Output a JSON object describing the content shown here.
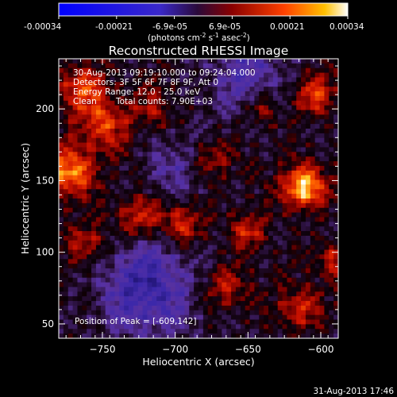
{
  "colorbar": {
    "ticks": [
      "-0.00034",
      "-0.00021",
      "-6.9e-05",
      "6.9e-05",
      "0.00021",
      "0.00034"
    ],
    "unit_prefix": "(photons cm",
    "unit_exp1": "-2",
    "unit_mid": " s",
    "unit_exp2": "-1",
    "unit_mid2": " asec",
    "unit_exp3": "-2",
    "unit_suffix": ")"
  },
  "annotations": {
    "time_range": "30-Aug-2013 09:19:10.000 to 09:24:04.000",
    "detectors": "Detectors: 3F 5F 6F 7F 8F 9F, Att 0",
    "energy": "Energy Range: 12.0 - 25.0 keV",
    "clean_label": "Clean",
    "counts": "Total counts: 7.90E+03",
    "peak": "Position of Peak = [-609,142]"
  },
  "footer_date": "31-Aug-2013 17:46",
  "chart_data": {
    "type": "heatmap",
    "title": "Reconstructed RHESSI Image",
    "xlabel": "Heliocentric X (arcsec)",
    "ylabel": "Heliocentric Y (arcsec)",
    "xlim": [
      -780,
      -588
    ],
    "ylim": [
      40,
      235
    ],
    "x_ticks": [
      -750,
      -700,
      -650,
      -600
    ],
    "y_ticks": [
      50,
      100,
      150,
      200
    ],
    "clim": [
      -0.00034,
      0.00034
    ],
    "colormap": "rhessi-purple-red-yellow-white",
    "peak": [
      -609,
      142
    ],
    "sources": [
      {
        "x": -612,
        "y": 145,
        "amp": 1.0,
        "sigma": 10
      },
      {
        "x": -773,
        "y": 155,
        "amp": 0.8,
        "sigma": 12
      },
      {
        "x": -695,
        "y": 120,
        "amp": 0.55,
        "sigma": 10
      },
      {
        "x": -750,
        "y": 190,
        "amp": 0.6,
        "sigma": 13
      },
      {
        "x": -765,
        "y": 215,
        "amp": 0.55,
        "sigma": 11
      },
      {
        "x": -725,
        "y": 125,
        "amp": 0.55,
        "sigma": 10
      },
      {
        "x": -650,
        "y": 115,
        "amp": 0.5,
        "sigma": 9
      },
      {
        "x": -615,
        "y": 60,
        "amp": 0.5,
        "sigma": 10
      },
      {
        "x": -605,
        "y": 210,
        "amp": 0.6,
        "sigma": 10
      },
      {
        "x": -675,
        "y": 165,
        "amp": 0.4,
        "sigma": 9
      },
      {
        "x": -665,
        "y": 75,
        "amp": 0.4,
        "sigma": 10
      },
      {
        "x": -590,
        "y": 95,
        "amp": 0.45,
        "sigma": 9
      },
      {
        "x": -760,
        "y": 105,
        "amp": 0.45,
        "sigma": 10
      },
      {
        "x": -715,
        "y": 200,
        "amp": 0.35,
        "sigma": 10
      },
      {
        "x": -640,
        "y": 200,
        "amp": 0.4,
        "sigma": 9
      }
    ],
    "negative_regions": [
      {
        "x": -720,
        "y": 75,
        "amp": -0.7,
        "sigma": 22
      },
      {
        "x": -650,
        "y": 225,
        "amp": -0.45,
        "sigma": 20
      },
      {
        "x": -700,
        "y": 160,
        "amp": -0.35,
        "sigma": 15
      }
    ]
  }
}
